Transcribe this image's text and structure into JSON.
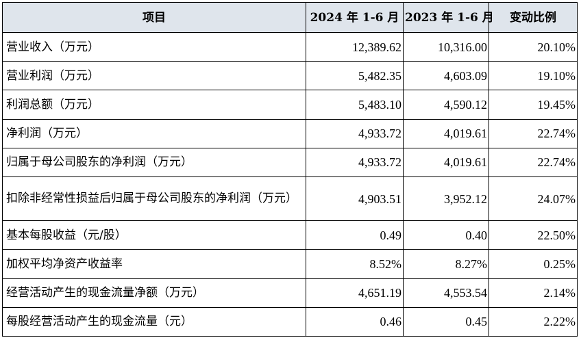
{
  "table": {
    "headers": [
      "项目",
      "2024 年 1-6 月",
      "2023 年 1-6 月",
      "变动比例"
    ],
    "rows": [
      {
        "item": "营业收入（万元）",
        "y2024": "12,389.62",
        "y2023": "10,316.00",
        "change": "20.10%"
      },
      {
        "item": "营业利润（万元）",
        "y2024": "5,482.35",
        "y2023": "4,603.09",
        "change": "19.10%"
      },
      {
        "item": "利润总额（万元）",
        "y2024": "5,483.10",
        "y2023": "4,590.12",
        "change": "19.45%"
      },
      {
        "item": "净利润（万元）",
        "y2024": "4,933.72",
        "y2023": "4,019.61",
        "change": "22.74%"
      },
      {
        "item": "归属于母公司股东的净利润（万元）",
        "y2024": "4,933.72",
        "y2023": "4,019.61",
        "change": "22.74%"
      },
      {
        "item": "扣除非经常性损益后归属于母公司股东的净利润（万元）",
        "y2024": "4,903.51",
        "y2023": "3,952.12",
        "change": "24.07%"
      },
      {
        "item": "基本每股收益（元/股）",
        "y2024": "0.49",
        "y2023": "0.40",
        "change": "22.50%"
      },
      {
        "item": "加权平均净资产收益率",
        "y2024": "8.52%",
        "y2023": "8.27%",
        "change": "0.25%"
      },
      {
        "item": "经营活动产生的现金流量净额（万元）",
        "y2024": "4,651.19",
        "y2023": "4,553.54",
        "change": "2.14%"
      },
      {
        "item": "每股经营活动产生的现金流量（元）",
        "y2024": "0.46",
        "y2023": "0.45",
        "change": "2.22%"
      }
    ]
  },
  "colors": {
    "header_bg": "#dfe5ec",
    "border": "#000000",
    "text": "#000000"
  }
}
